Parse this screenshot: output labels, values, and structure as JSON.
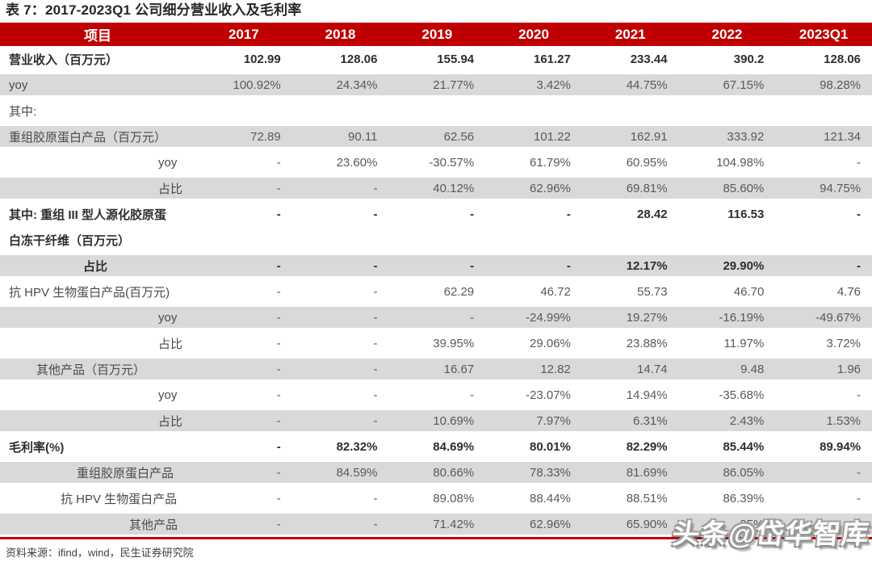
{
  "title": "表 7：2017-2023Q1 公司细分营业收入及毛利率",
  "source_note": "资料来源：ifind，wind，民生证券研究院",
  "watermark": "头条@岱华智库",
  "colors": {
    "header_red": "#C00000",
    "stripe_gray": "#D9D9D9",
    "header_text": "#FFFFFF"
  },
  "table": {
    "header": [
      "项目",
      "2017",
      "2018",
      "2019",
      "2020",
      "2021",
      "2022",
      "2023Q1"
    ],
    "rows": [
      {
        "label": "营业收入（百万元）",
        "bold": true,
        "shade": false,
        "indent": "left",
        "values": [
          "102.99",
          "128.06",
          "155.94",
          "161.27",
          "233.44",
          "390.2",
          "128.06"
        ]
      },
      {
        "label": "yoy",
        "bold": false,
        "shade": true,
        "indent": "left",
        "values": [
          "100.92%",
          "24.34%",
          "21.77%",
          "3.42%",
          "44.75%",
          "67.15%",
          "98.28%"
        ]
      },
      {
        "label": "其中:",
        "bold": false,
        "shade": false,
        "indent": "left",
        "values": [
          "",
          "",
          "",
          "",
          "",
          "",
          ""
        ]
      },
      {
        "label": "重组胶原蛋白产品（百万元）",
        "bold": false,
        "shade": true,
        "indent": "left",
        "values": [
          "72.89",
          "90.11",
          "62.56",
          "101.22",
          "162.91",
          "333.92",
          "121.34"
        ]
      },
      {
        "label": "yoy",
        "bold": false,
        "shade": false,
        "indent": "far",
        "values": [
          "-",
          "23.60%",
          "-30.57%",
          "61.79%",
          "60.95%",
          "104.98%",
          "-"
        ]
      },
      {
        "label": "占比",
        "bold": false,
        "shade": true,
        "indent": "far",
        "values": [
          "-",
          "-",
          "40.12%",
          "62.96%",
          "69.81%",
          "85.60%",
          "94.75%"
        ]
      },
      {
        "label": "其中: 重组 III 型人源化胶原蛋",
        "bold": true,
        "shade": false,
        "indent": "left",
        "values": [
          "-",
          "-",
          "-",
          "-",
          "28.42",
          "116.53",
          "-"
        ]
      },
      {
        "label": "白冻干纤维（百万元）",
        "bold": true,
        "shade": false,
        "indent": "left",
        "values": [
          "",
          "",
          "",
          "",
          "",
          "",
          ""
        ]
      },
      {
        "label": "占比",
        "bold": true,
        "shade": true,
        "indent": "mid",
        "values": [
          "-",
          "-",
          "-",
          "-",
          "12.17%",
          "29.90%",
          "-"
        ]
      },
      {
        "label": "抗 HPV 生物蛋白产品(百万元)",
        "bold": false,
        "shade": false,
        "indent": "left",
        "values": [
          "-",
          "-",
          "62.29",
          "46.72",
          "55.73",
          "46.70",
          "4.76"
        ]
      },
      {
        "label": "yoy",
        "bold": false,
        "shade": true,
        "indent": "far",
        "values": [
          "-",
          "-",
          "-",
          "-24.99%",
          "19.27%",
          "-16.19%",
          "-49.67%"
        ]
      },
      {
        "label": "占比",
        "bold": false,
        "shade": false,
        "indent": "far",
        "values": [
          "-",
          "-",
          "39.95%",
          "29.06%",
          "23.88%",
          "11.97%",
          "3.72%"
        ]
      },
      {
        "label": "其他产品（百万元）",
        "bold": false,
        "shade": true,
        "indent": "sm",
        "values": [
          "-",
          "-",
          "16.67",
          "12.82",
          "14.74",
          "9.48",
          "1.96"
        ]
      },
      {
        "label": "yoy",
        "bold": false,
        "shade": false,
        "indent": "far",
        "values": [
          "-",
          "-",
          "-",
          "-23.07%",
          "14.94%",
          "-35.68%",
          "-"
        ]
      },
      {
        "label": "占比",
        "bold": false,
        "shade": true,
        "indent": "far",
        "values": [
          "-",
          "-",
          "10.69%",
          "7.97%",
          "6.31%",
          "2.43%",
          "1.53%"
        ]
      },
      {
        "label": "毛利率(%)",
        "bold": true,
        "shade": false,
        "indent": "left",
        "values": [
          "-",
          "82.32%",
          "84.69%",
          "80.01%",
          "82.29%",
          "85.44%",
          "89.94%"
        ]
      },
      {
        "label": "重组胶原蛋白产品",
        "bold": false,
        "shade": true,
        "indent": "m18",
        "values": [
          "-",
          "84.59%",
          "80.66%",
          "78.33%",
          "81.69%",
          "86.05%",
          "-"
        ]
      },
      {
        "label": "抗 HPV 生物蛋白产品",
        "bold": false,
        "shade": false,
        "indent": "m19",
        "values": [
          "-",
          "-",
          "89.08%",
          "88.44%",
          "88.51%",
          "86.39%",
          "-"
        ]
      },
      {
        "label": "其他产品",
        "bold": false,
        "shade": true,
        "indent": "m20",
        "values": [
          "-",
          "-",
          "71.42%",
          "62.96%",
          "65.90%",
          "25%",
          "-"
        ]
      }
    ]
  }
}
